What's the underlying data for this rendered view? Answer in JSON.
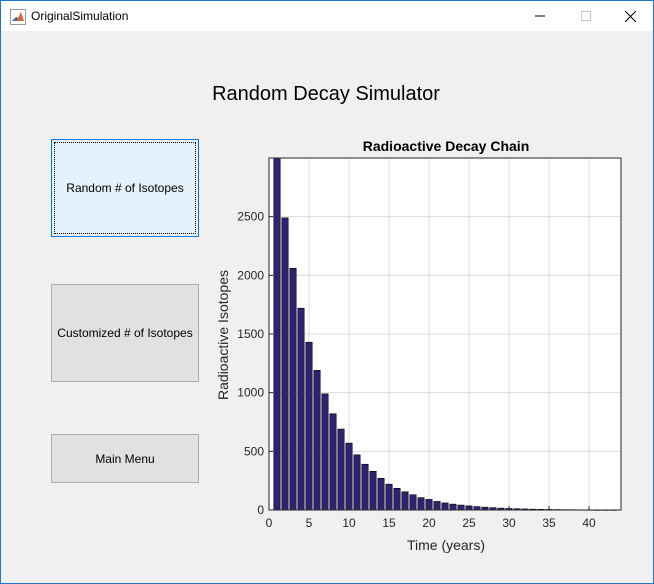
{
  "window": {
    "title": "OriginalSimulation",
    "icon": "matlab-icon"
  },
  "controls": {
    "minimize": "—",
    "maximize": "☐",
    "close": "✕"
  },
  "heading": "Random Decay Simulator",
  "buttons": {
    "random": "Random # of Isotopes",
    "custom": "Customized # of Isotopes",
    "main_menu": "Main Menu"
  },
  "colors": {
    "bar_fill": "#2e2475",
    "selected_button": "#e5f1fb",
    "window_border": "#1e78d2"
  },
  "chart_data": {
    "type": "bar",
    "title": "Radioactive Decay Chain",
    "xlabel": "Time (years)",
    "ylabel": "Radioactive Isotopes",
    "xlim": [
      0,
      44
    ],
    "ylim": [
      0,
      3000
    ],
    "xticks": [
      0,
      5,
      10,
      15,
      20,
      25,
      30,
      35,
      40
    ],
    "yticks": [
      0,
      500,
      1000,
      1500,
      2000,
      2500
    ],
    "grid": true,
    "x": [
      1,
      2,
      3,
      4,
      5,
      6,
      7,
      8,
      9,
      10,
      11,
      12,
      13,
      14,
      15,
      16,
      17,
      18,
      19,
      20,
      21,
      22,
      23,
      24,
      25,
      26,
      27,
      28,
      29,
      30,
      31,
      32,
      33,
      34,
      35,
      36,
      37,
      38,
      39,
      40,
      41,
      42,
      43
    ],
    "values": [
      3000,
      2490,
      2060,
      1720,
      1430,
      1190,
      990,
      820,
      690,
      570,
      470,
      390,
      330,
      270,
      220,
      185,
      155,
      130,
      105,
      90,
      73,
      60,
      50,
      42,
      35,
      29,
      24,
      20,
      16,
      13,
      11,
      9,
      7,
      6,
      5,
      4,
      3,
      3,
      2,
      2,
      1,
      1,
      1
    ]
  }
}
